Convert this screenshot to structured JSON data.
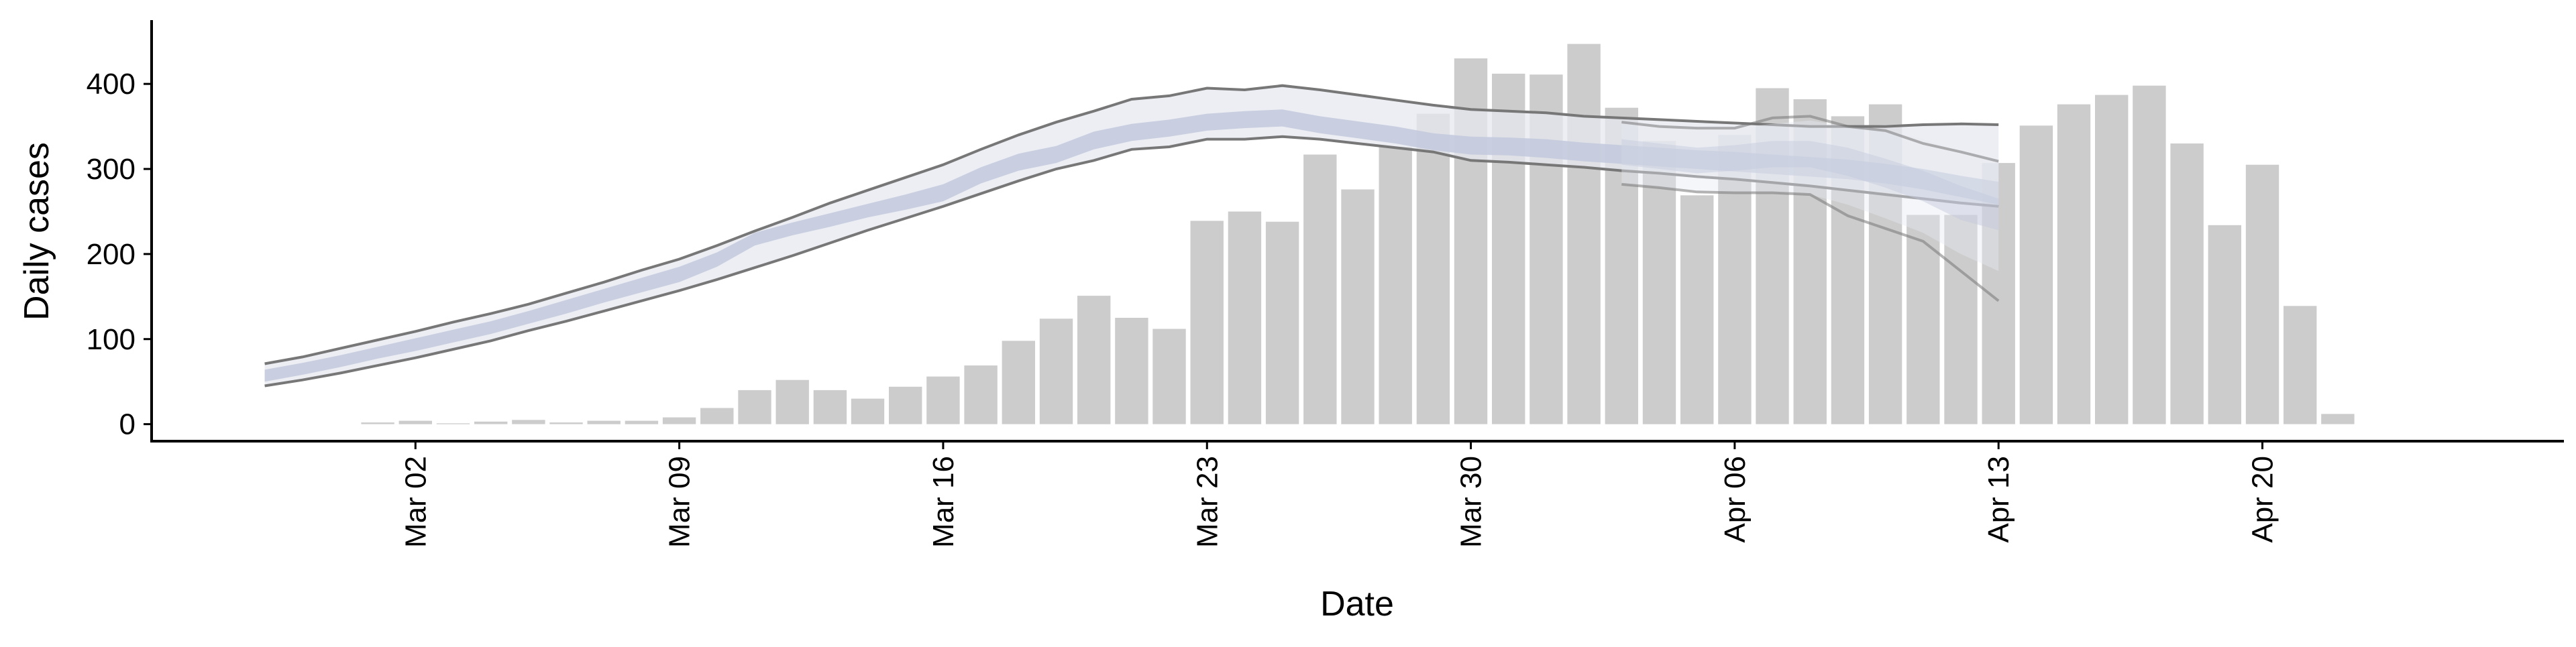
{
  "chart_data": {
    "type": "bar",
    "xlabel": "Date",
    "ylabel": "Daily cases",
    "x_tick_labels": [
      "Mar 02",
      "Mar 09",
      "Mar 16",
      "Mar 23",
      "Mar 30",
      "Apr 06",
      "Apr 13",
      "Apr 20"
    ],
    "x_tick_dates": [
      "2020-03-02",
      "2020-03-09",
      "2020-03-16",
      "2020-03-23",
      "2020-03-30",
      "2020-04-06",
      "2020-04-13",
      "2020-04-20"
    ],
    "y_tick_labels": [
      "0",
      "100",
      "200",
      "300",
      "400"
    ],
    "y_ticks": [
      0,
      100,
      200,
      300,
      400
    ],
    "xlim": [
      "2020-02-24",
      "2020-04-28"
    ],
    "ylim": [
      -20,
      475
    ],
    "grid": false,
    "colors": {
      "bars": "#cccccc",
      "band_outer": "#e6e8f0",
      "band_inner": "#c3c9dc",
      "bound_lines": "#777777"
    },
    "bars": {
      "dates": [
        "2020-03-01",
        "2020-03-02",
        "2020-03-03",
        "2020-03-04",
        "2020-03-05",
        "2020-03-06",
        "2020-03-07",
        "2020-03-08",
        "2020-03-09",
        "2020-03-10",
        "2020-03-11",
        "2020-03-12",
        "2020-03-13",
        "2020-03-14",
        "2020-03-15",
        "2020-03-16",
        "2020-03-17",
        "2020-03-18",
        "2020-03-19",
        "2020-03-20",
        "2020-03-21",
        "2020-03-22",
        "2020-03-23",
        "2020-03-24",
        "2020-03-25",
        "2020-03-26",
        "2020-03-27",
        "2020-03-28",
        "2020-03-29",
        "2020-03-30",
        "2020-03-31",
        "2020-04-01",
        "2020-04-02",
        "2020-04-03",
        "2020-04-04",
        "2020-04-05",
        "2020-04-06",
        "2020-04-07",
        "2020-04-08",
        "2020-04-09",
        "2020-04-10",
        "2020-04-11",
        "2020-04-12",
        "2020-04-13",
        "2020-04-14",
        "2020-04-15",
        "2020-04-16",
        "2020-04-17",
        "2020-04-18",
        "2020-04-19",
        "2020-04-20",
        "2020-04-21",
        "2020-04-22"
      ],
      "values": [
        2,
        4,
        1,
        3,
        5,
        2,
        4,
        4,
        8,
        19,
        40,
        52,
        40,
        30,
        44,
        56,
        69,
        98,
        124,
        151,
        125,
        112,
        239,
        250,
        238,
        317,
        276,
        326,
        365,
        430,
        412,
        411,
        447,
        372,
        333,
        269,
        340,
        395,
        382,
        362,
        376,
        246,
        246,
        307,
        351,
        376,
        387,
        398,
        330,
        234,
        305,
        139,
        12
      ]
    },
    "estimate": {
      "dates": [
        "2020-02-27",
        "2020-02-28",
        "2020-02-29",
        "2020-03-01",
        "2020-03-02",
        "2020-03-03",
        "2020-03-04",
        "2020-03-05",
        "2020-03-06",
        "2020-03-07",
        "2020-03-08",
        "2020-03-09",
        "2020-03-10",
        "2020-03-11",
        "2020-03-12",
        "2020-03-13",
        "2020-03-14",
        "2020-03-15",
        "2020-03-16",
        "2020-03-17",
        "2020-03-18",
        "2020-03-19",
        "2020-03-20",
        "2020-03-21",
        "2020-03-22",
        "2020-03-23",
        "2020-03-24",
        "2020-03-25",
        "2020-03-26",
        "2020-03-27",
        "2020-03-28",
        "2020-03-29",
        "2020-03-30",
        "2020-03-31",
        "2020-04-01",
        "2020-04-02",
        "2020-04-03",
        "2020-04-04",
        "2020-04-05",
        "2020-04-06",
        "2020-04-07",
        "2020-04-08",
        "2020-04-09",
        "2020-04-10",
        "2020-04-11",
        "2020-04-12",
        "2020-04-13"
      ],
      "lower_90": [
        45,
        52,
        60,
        69,
        78,
        88,
        98,
        110,
        121,
        133,
        145,
        157,
        170,
        184,
        198,
        213,
        228,
        242,
        256,
        271,
        286,
        300,
        310,
        323,
        326,
        335,
        335,
        338,
        335,
        330,
        325,
        320,
        310,
        308,
        305,
        302,
        300,
        296,
        293,
        289,
        285,
        279,
        276,
        272,
        266,
        260,
        255
      ],
      "upper_90": [
        71,
        79,
        89,
        99,
        109,
        120,
        130,
        141,
        154,
        167,
        181,
        194,
        210,
        227,
        243,
        260,
        275,
        290,
        305,
        323,
        340,
        355,
        368,
        382,
        386,
        395,
        393,
        398,
        393,
        387,
        381,
        375,
        370,
        368,
        366,
        362,
        360,
        358,
        356,
        354,
        352,
        350,
        350,
        352,
        353,
        352,
        351
      ],
      "lower_50": [
        50,
        58,
        67,
        77,
        86,
        96,
        106,
        118,
        130,
        143,
        155,
        167,
        185,
        210,
        222,
        232,
        243,
        252,
        262,
        283,
        298,
        307,
        323,
        333,
        338,
        345,
        348,
        350,
        342,
        336,
        330,
        322,
        317,
        316,
        313,
        309,
        306,
        303,
        300,
        297,
        294,
        291,
        288,
        283,
        276,
        267,
        258
      ],
      "upper_50": [
        64,
        72,
        81,
        91,
        101,
        111,
        121,
        133,
        146,
        159,
        172,
        185,
        202,
        225,
        237,
        248,
        259,
        270,
        282,
        302,
        318,
        327,
        344,
        353,
        358,
        365,
        368,
        370,
        362,
        356,
        350,
        342,
        338,
        337,
        335,
        331,
        328,
        325,
        322,
        320,
        317,
        314,
        311,
        306,
        300,
        292,
        285
      ],
      "lower_bound_line": [
        45,
        52,
        60,
        69,
        78,
        88,
        98,
        110,
        121,
        133,
        145,
        157,
        170,
        184,
        198,
        213,
        228,
        242,
        256,
        271,
        286,
        300,
        310,
        323,
        326,
        335,
        335,
        338,
        335,
        330,
        325,
        320,
        310,
        308,
        305,
        302,
        298,
        295,
        291,
        288,
        284,
        280,
        275,
        270,
        265,
        260,
        256
      ],
      "upper_bound_line": [
        71,
        79,
        89,
        99,
        109,
        120,
        130,
        141,
        154,
        167,
        181,
        194,
        210,
        227,
        243,
        260,
        275,
        290,
        305,
        323,
        340,
        355,
        368,
        382,
        386,
        395,
        393,
        398,
        393,
        387,
        381,
        375,
        370,
        368,
        366,
        362,
        360,
        358,
        356,
        354,
        352,
        350,
        350,
        350,
        352,
        353,
        352
      ]
    },
    "forecast": {
      "dates": [
        "2020-04-03",
        "2020-04-04",
        "2020-04-05",
        "2020-04-06",
        "2020-04-07",
        "2020-04-08",
        "2020-04-09",
        "2020-04-10",
        "2020-04-11",
        "2020-04-12",
        "2020-04-13"
      ],
      "lower_90": [
        282,
        278,
        273,
        272,
        272,
        270,
        258,
        242,
        225,
        200,
        180
      ],
      "upper_90": [
        355,
        350,
        348,
        348,
        353,
        357,
        350,
        345,
        335,
        320,
        309
      ],
      "lower_50": [
        305,
        300,
        295,
        298,
        302,
        302,
        292,
        278,
        262,
        240,
        228
      ],
      "upper_50": [
        335,
        330,
        325,
        328,
        333,
        333,
        325,
        312,
        298,
        280,
        265
      ],
      "lower_bound_line": [
        282,
        278,
        273,
        272,
        272,
        270,
        245,
        230,
        215,
        180,
        145
      ],
      "upper_bound_line": [
        355,
        350,
        348,
        348,
        360,
        362,
        350,
        345,
        330,
        320,
        309
      ]
    }
  }
}
